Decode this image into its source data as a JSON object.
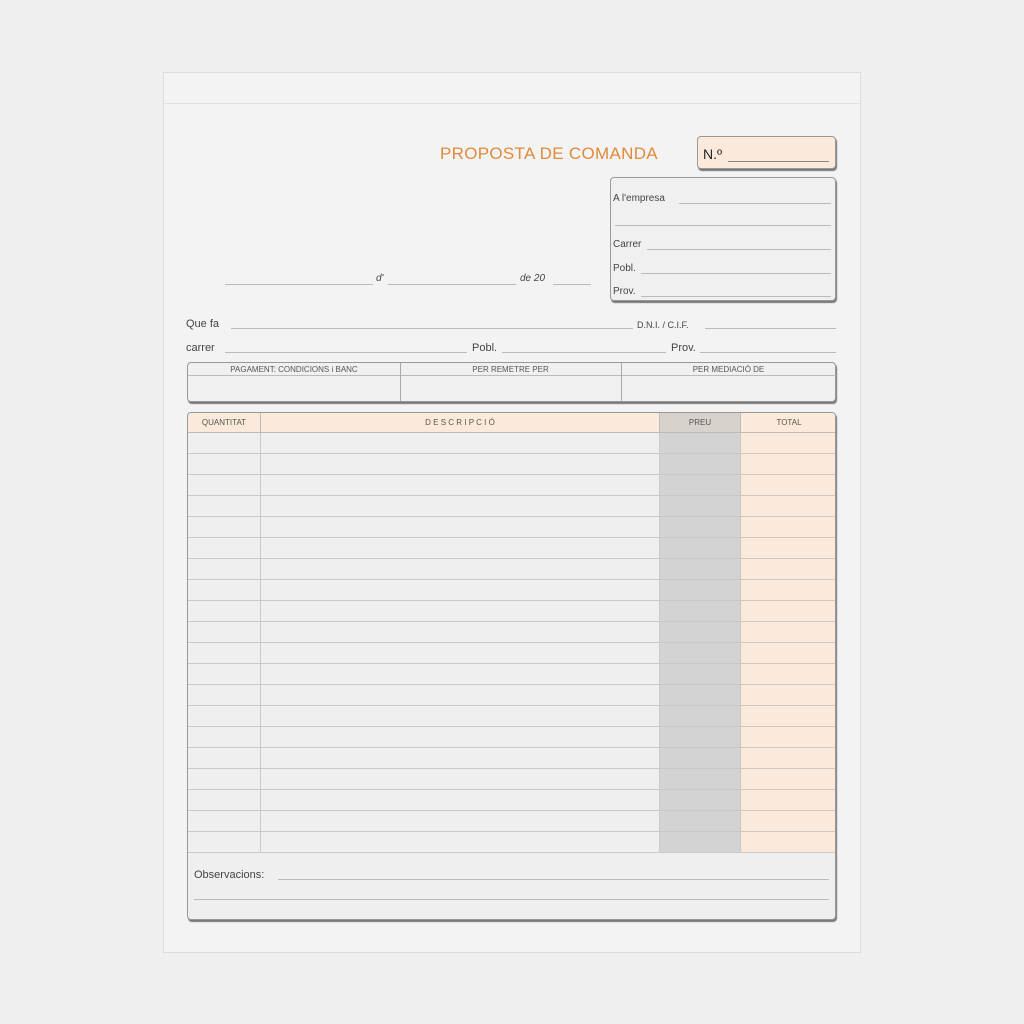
{
  "form": {
    "title": "PROPOSTA DE COMANDA",
    "number_label": "N.º",
    "date_of": "d'",
    "date_year": "de 20",
    "company": {
      "empresa": "A l'empresa",
      "carrer": "Carrer",
      "pobl": "Pobl.",
      "prov": "Prov."
    },
    "client": {
      "que_fa": "Que fa",
      "dni": "D.N.I. / C.I.F.",
      "carrer": "carrer",
      "pobl": "Pobl.",
      "prov": "Prov."
    },
    "payment_headers": [
      "PAGAMENT: CONDICIONS i BANC",
      "PER REMETRE PER",
      "PER MEDIACIÓ DE"
    ],
    "table_headers": [
      "QUANTITAT",
      "D E S C R I P C I Ó",
      "PREU",
      "TOTAL"
    ],
    "row_count": 20,
    "observations": "Observacions:"
  },
  "colors": {
    "accent": "#e08a3c",
    "highlight": "#fbeadb",
    "price_column": "#d3d3d3"
  }
}
